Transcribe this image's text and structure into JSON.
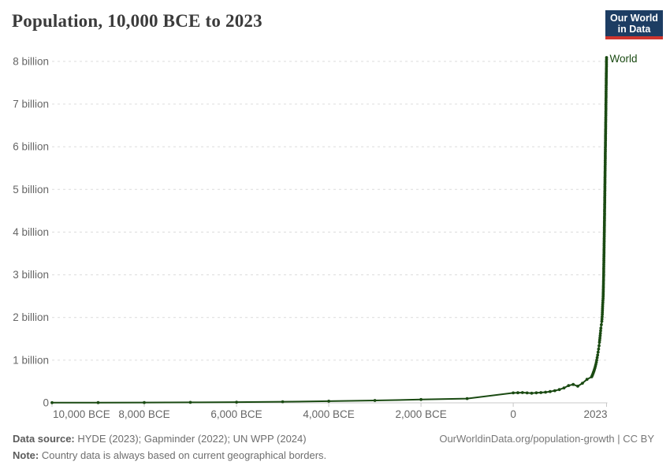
{
  "header": {
    "title": "Population, 10,000 BCE to 2023",
    "logo": {
      "line1": "Our World",
      "line2": "in Data"
    }
  },
  "chart_data": {
    "type": "line",
    "title": "Population, 10,000 BCE to 2023",
    "xlabel": "",
    "ylabel": "",
    "xlim": [
      -10000,
      2023
    ],
    "ylim": [
      0,
      8.09
    ],
    "grid": "horizontal-dashed",
    "legend_position": "end-of-line-label",
    "x_ticks": [
      {
        "value": -10000,
        "label": "10,000 BCE"
      },
      {
        "value": -8000,
        "label": "8,000 BCE"
      },
      {
        "value": -6000,
        "label": "6,000 BCE"
      },
      {
        "value": -4000,
        "label": "4,000 BCE"
      },
      {
        "value": -2000,
        "label": "2,000 BCE"
      },
      {
        "value": 0,
        "label": "0"
      },
      {
        "value": 2023,
        "label": "2023"
      }
    ],
    "y_ticks": [
      {
        "value": 0,
        "label": "0"
      },
      {
        "value": 1,
        "label": "1 billion"
      },
      {
        "value": 2,
        "label": "2 billion"
      },
      {
        "value": 3,
        "label": "3 billion"
      },
      {
        "value": 4,
        "label": "4 billion"
      },
      {
        "value": 5,
        "label": "5 billion"
      },
      {
        "value": 6,
        "label": "6 billion"
      },
      {
        "value": 7,
        "label": "7 billion"
      },
      {
        "value": 8,
        "label": "8 billion"
      }
    ],
    "series": [
      {
        "name": "World",
        "color": "#1a4a12",
        "points": [
          [
            -10000,
            0.004
          ],
          [
            -9000,
            0.006
          ],
          [
            -8000,
            0.008
          ],
          [
            -7000,
            0.012
          ],
          [
            -6000,
            0.017
          ],
          [
            -5000,
            0.026
          ],
          [
            -4000,
            0.039
          ],
          [
            -3000,
            0.056
          ],
          [
            -2000,
            0.078
          ],
          [
            -1000,
            0.1
          ],
          [
            0,
            0.232
          ],
          [
            100,
            0.236
          ],
          [
            200,
            0.24
          ],
          [
            300,
            0.232
          ],
          [
            400,
            0.225
          ],
          [
            500,
            0.235
          ],
          [
            600,
            0.24
          ],
          [
            700,
            0.25
          ],
          [
            800,
            0.265
          ],
          [
            900,
            0.285
          ],
          [
            1000,
            0.31
          ],
          [
            1100,
            0.35
          ],
          [
            1200,
            0.405
          ],
          [
            1300,
            0.43
          ],
          [
            1400,
            0.39
          ],
          [
            1500,
            0.46
          ],
          [
            1600,
            0.55
          ],
          [
            1700,
            0.61
          ],
          [
            1710,
            0.635
          ],
          [
            1720,
            0.66
          ],
          [
            1730,
            0.69
          ],
          [
            1740,
            0.715
          ],
          [
            1750,
            0.745
          ],
          [
            1760,
            0.78
          ],
          [
            1770,
            0.815
          ],
          [
            1780,
            0.855
          ],
          [
            1790,
            0.9
          ],
          [
            1800,
            0.95
          ],
          [
            1810,
            1.0
          ],
          [
            1820,
            1.06
          ],
          [
            1830,
            1.12
          ],
          [
            1840,
            1.19
          ],
          [
            1850,
            1.26
          ],
          [
            1860,
            1.34
          ],
          [
            1870,
            1.42
          ],
          [
            1880,
            1.52
          ],
          [
            1890,
            1.63
          ],
          [
            1900,
            1.75
          ],
          [
            1910,
            1.83
          ],
          [
            1920,
            1.91
          ],
          [
            1930,
            2.07
          ],
          [
            1940,
            2.3
          ],
          [
            1950,
            2.49
          ],
          [
            1955,
            2.74
          ],
          [
            1960,
            3.02
          ],
          [
            1965,
            3.34
          ],
          [
            1970,
            3.69
          ],
          [
            1975,
            4.07
          ],
          [
            1980,
            4.44
          ],
          [
            1985,
            4.86
          ],
          [
            1990,
            5.32
          ],
          [
            1995,
            5.72
          ],
          [
            2000,
            6.15
          ],
          [
            2005,
            6.56
          ],
          [
            2010,
            6.99
          ],
          [
            2015,
            7.43
          ],
          [
            2020,
            7.84
          ],
          [
            2023,
            8.09
          ]
        ]
      }
    ]
  },
  "footer": {
    "source_label": "Data source:",
    "sources": "HYDE (2023); Gapminder (2022); UN WPP (2024)",
    "note_label": "Note:",
    "note": "Country data is always based on current geographical borders.",
    "link": "OurWorldinData.org/population-growth | CC BY"
  },
  "colors": {
    "series": "#1a4a12",
    "gridline": "#dcdcdc",
    "axis": "#c8c8c8",
    "tick_label": "#666666",
    "logo_bg": "#1d3d63",
    "logo_red": "#cf352e",
    "title_text": "#3b3b3b"
  }
}
